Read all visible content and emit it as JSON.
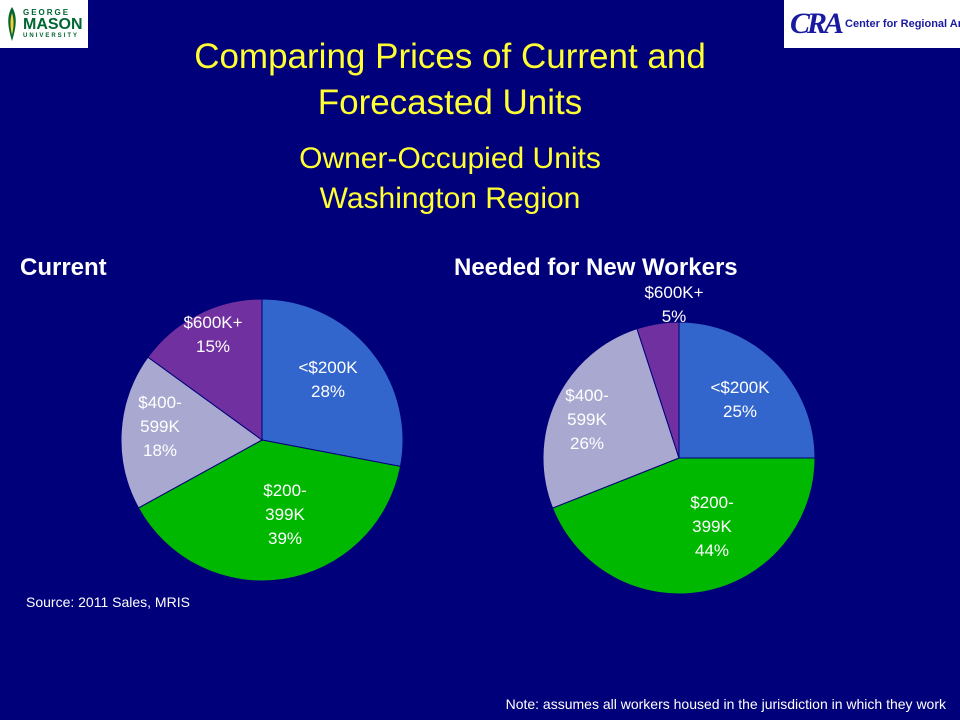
{
  "header": {
    "title_line1": "Comparing Prices of Current and",
    "title_line2": "Forecasted Units",
    "subtitle_line1": "Owner-Occupied Units",
    "subtitle_line2": "Washington Region"
  },
  "logos": {
    "gmu": {
      "george": "GEORGE",
      "mason": "MASON",
      "university": "UNIVERSITY"
    },
    "cra": {
      "mark": "CRA",
      "name": "Center for Regional Analysis"
    }
  },
  "colors": {
    "background": "#00007a",
    "title": "#ffff33",
    "slice_under_200k": "#3366cc",
    "slice_200_399k": "#00b800",
    "slice_400_599k": "#a8a8d0",
    "slice_600k_plus": "#7030a0"
  },
  "source": "Source: 2011 Sales, MRIS",
  "footnote": "Note: assumes all workers housed in the jurisdiction in which they work",
  "chart_data": [
    {
      "type": "pie",
      "title": "Current",
      "slices": [
        {
          "label_lines": [
            "<$200K",
            "28%"
          ],
          "category": "<$200K",
          "value": 28
        },
        {
          "label_lines": [
            "$200-",
            "399K",
            "39%"
          ],
          "category": "$200-399K",
          "value": 39
        },
        {
          "label_lines": [
            "$400-",
            "599K",
            "18%"
          ],
          "category": "$400-599K",
          "value": 18
        },
        {
          "label_lines": [
            "$600K+",
            "15%"
          ],
          "category": "$600K+",
          "value": 15
        }
      ]
    },
    {
      "type": "pie",
      "title": "Needed for New Workers",
      "slices": [
        {
          "label_lines": [
            "<$200K",
            "25%"
          ],
          "category": "<$200K",
          "value": 25
        },
        {
          "label_lines": [
            "$200-",
            "399K",
            "44%"
          ],
          "category": "$200-399K",
          "value": 44
        },
        {
          "label_lines": [
            "$400-",
            "599K",
            "26%"
          ],
          "category": "$400-599K",
          "value": 26
        },
        {
          "label_lines": [
            "$600K+",
            "5%"
          ],
          "category": "$600K+",
          "value": 5
        }
      ]
    }
  ]
}
